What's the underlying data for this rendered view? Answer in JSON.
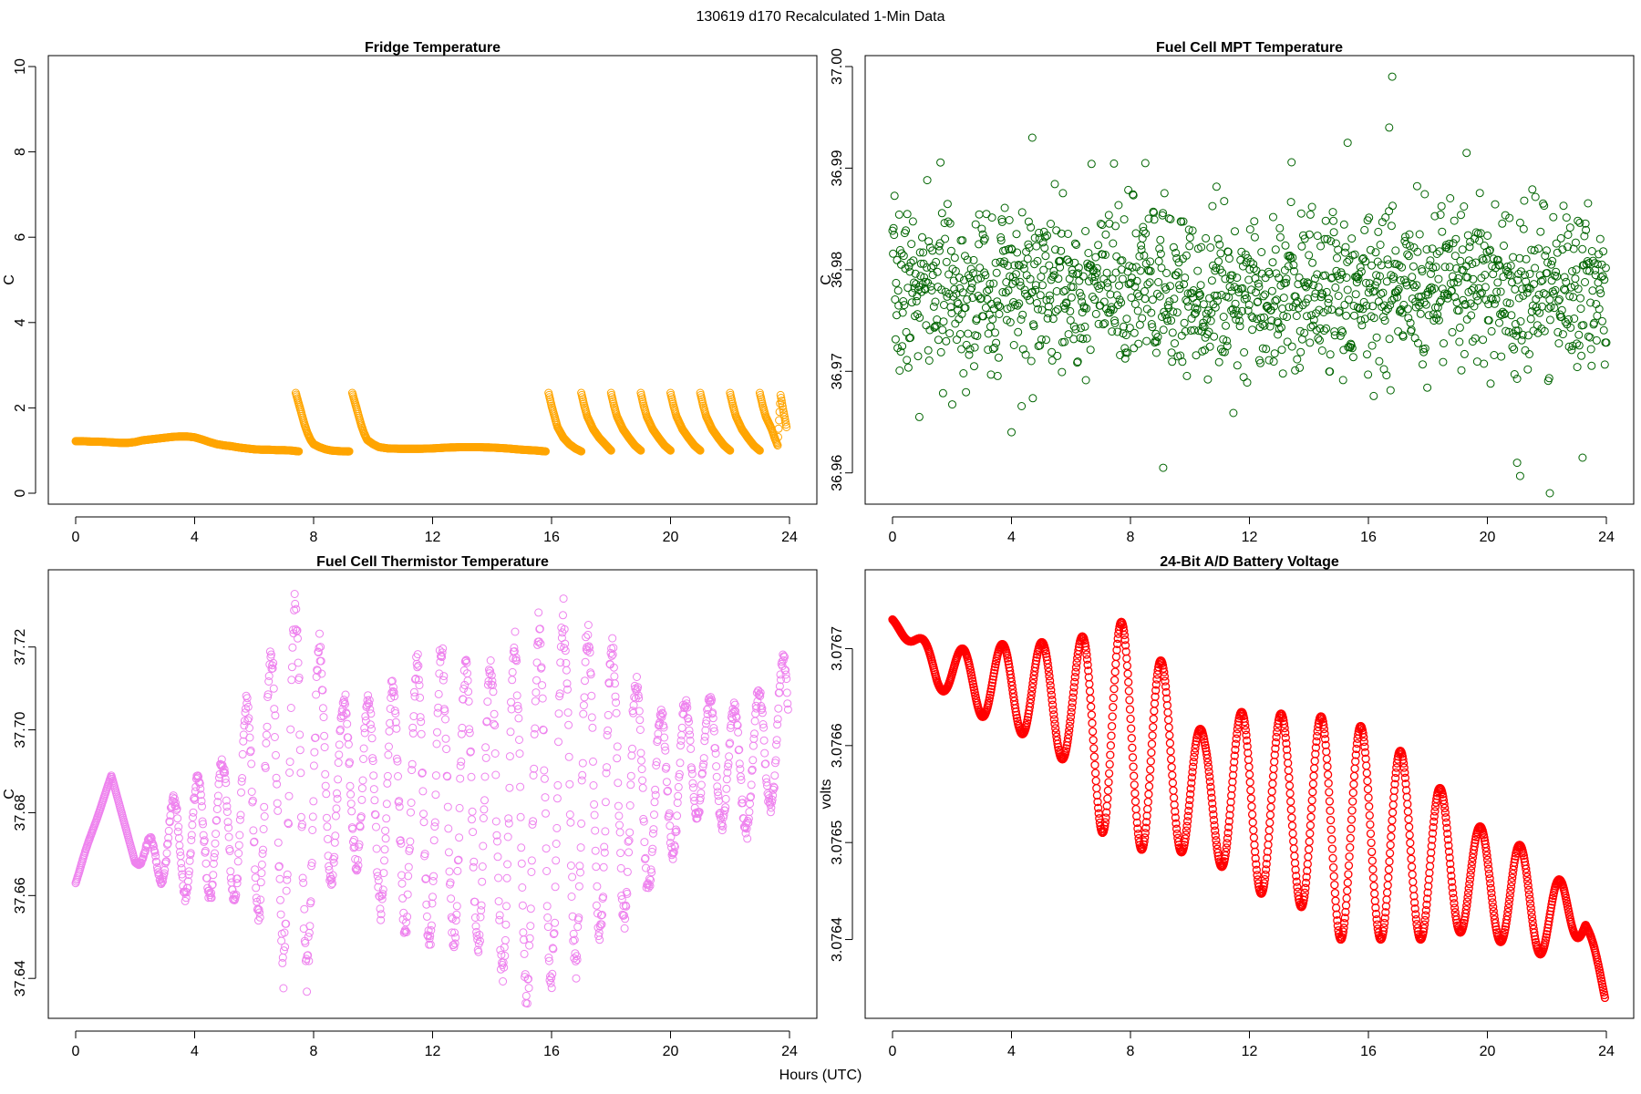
{
  "figure": {
    "title": "130619   d170   Recalculated 1-Min Data",
    "xlabel": "Hours (UTC)"
  },
  "chart_data": [
    {
      "type": "scatter",
      "title": "Fridge Temperature",
      "xlabel": "",
      "ylabel": "C",
      "xlim": [
        0,
        24
      ],
      "ylim": [
        0,
        10
      ],
      "xticks": [
        0,
        4,
        8,
        12,
        16,
        20,
        24
      ],
      "yticks": [
        0,
        2,
        4,
        6,
        8,
        10
      ],
      "ytick_labels": [
        "0",
        "2",
        "4",
        "6",
        "8",
        "10"
      ],
      "color": "#FFA500",
      "marker": "open-circle",
      "series": [
        {
          "x": [
            0.0,
            0.25,
            0.5,
            0.75,
            1.0,
            1.25,
            1.5,
            1.75,
            2.0,
            2.25,
            2.5,
            2.75,
            3.0,
            3.25,
            3.5,
            3.75,
            4.0,
            4.25,
            4.5,
            4.75,
            5.0,
            5.25,
            5.5,
            5.75,
            6.0,
            6.25,
            6.5,
            6.75,
            7.0,
            7.25,
            7.5
          ],
          "y": [
            1.22,
            1.22,
            1.21,
            1.21,
            1.2,
            1.19,
            1.18,
            1.18,
            1.2,
            1.24,
            1.26,
            1.28,
            1.3,
            1.32,
            1.33,
            1.33,
            1.31,
            1.26,
            1.2,
            1.15,
            1.12,
            1.1,
            1.07,
            1.05,
            1.03,
            1.02,
            1.02,
            1.01,
            1.01,
            1.0,
            0.98
          ]
        },
        {
          "x": [
            7.4,
            7.5,
            7.6,
            7.7,
            7.8,
            7.9,
            8.0,
            8.2,
            8.4,
            8.6,
            8.8,
            9.0,
            9.2
          ],
          "y": [
            2.35,
            2.1,
            1.85,
            1.6,
            1.4,
            1.25,
            1.15,
            1.08,
            1.03,
            1.0,
            0.99,
            0.98,
            0.98
          ]
        },
        {
          "x": [
            9.3,
            9.4,
            9.5,
            9.6,
            9.7,
            9.8,
            10.0,
            10.2,
            10.5,
            11.0,
            11.5,
            12.0,
            12.5,
            13.0,
            13.5,
            14.0,
            14.5,
            15.0,
            15.5,
            15.8
          ],
          "y": [
            2.35,
            2.1,
            1.85,
            1.6,
            1.4,
            1.25,
            1.15,
            1.08,
            1.05,
            1.04,
            1.04,
            1.05,
            1.07,
            1.08,
            1.08,
            1.07,
            1.05,
            1.02,
            1.0,
            0.98
          ]
        },
        {
          "x": [
            15.9,
            16.0,
            16.1,
            16.2,
            16.4,
            16.6,
            16.8,
            17.0
          ],
          "y": [
            2.35,
            2.05,
            1.8,
            1.55,
            1.3,
            1.15,
            1.05,
            0.98
          ]
        },
        {
          "x": [
            17.0,
            17.1,
            17.2,
            17.4,
            17.6,
            17.8,
            18.0
          ],
          "y": [
            2.35,
            2.05,
            1.8,
            1.5,
            1.3,
            1.15,
            1.0
          ]
        },
        {
          "x": [
            18.0,
            18.1,
            18.2,
            18.4,
            18.6,
            18.8,
            19.0
          ],
          "y": [
            2.35,
            2.05,
            1.8,
            1.5,
            1.3,
            1.12,
            1.0
          ]
        },
        {
          "x": [
            19.0,
            19.1,
            19.2,
            19.4,
            19.6,
            19.8,
            20.0
          ],
          "y": [
            2.35,
            2.05,
            1.8,
            1.5,
            1.3,
            1.12,
            1.0
          ]
        },
        {
          "x": [
            20.0,
            20.1,
            20.2,
            20.4,
            20.6,
            20.8,
            21.0
          ],
          "y": [
            2.35,
            2.05,
            1.8,
            1.5,
            1.3,
            1.12,
            1.0
          ]
        },
        {
          "x": [
            21.0,
            21.1,
            21.2,
            21.4,
            21.6,
            21.8,
            22.0
          ],
          "y": [
            2.35,
            2.05,
            1.8,
            1.5,
            1.3,
            1.12,
            1.0
          ]
        },
        {
          "x": [
            22.0,
            22.1,
            22.2,
            22.4,
            22.6,
            22.8,
            23.0
          ],
          "y": [
            2.35,
            2.05,
            1.8,
            1.5,
            1.3,
            1.12,
            1.0
          ]
        },
        {
          "x": [
            23.0,
            23.1,
            23.2,
            23.4,
            23.5,
            23.6,
            23.7,
            23.8,
            23.9
          ],
          "y": [
            2.35,
            2.05,
            1.8,
            1.5,
            1.3,
            1.12,
            2.3,
            1.9,
            1.55
          ]
        }
      ]
    },
    {
      "type": "scatter",
      "title": "Fuel Cell MPT Temperature",
      "xlabel": "",
      "ylabel": "C",
      "xlim": [
        0,
        24
      ],
      "ylim": [
        36.958,
        37.0
      ],
      "xticks": [
        0,
        4,
        8,
        12,
        16,
        20,
        24
      ],
      "yticks": [
        36.96,
        36.97,
        36.98,
        36.99,
        37.0
      ],
      "ytick_labels": [
        "36.96",
        "36.97",
        "36.98",
        "36.99",
        "37.00"
      ],
      "color": "#006400",
      "marker": "open-circle",
      "generated": {
        "kind": "noise",
        "n": 1400,
        "center": 36.978,
        "spread": 0.0065,
        "seed": 7,
        "outliers": [
          [
            16.8,
            36.999
          ],
          [
            4.7,
            36.993
          ],
          [
            9.1,
            36.9605
          ],
          [
            21.0,
            36.961
          ],
          [
            21.1,
            36.9597
          ],
          [
            22.1,
            36.958
          ],
          [
            15.3,
            36.9925
          ],
          [
            16.7,
            36.994
          ],
          [
            8.5,
            36.9905
          ],
          [
            19.3,
            36.9915
          ],
          [
            0.9,
            36.9655
          ],
          [
            4.0,
            36.964
          ],
          [
            23.2,
            36.9615
          ]
        ]
      }
    },
    {
      "type": "scatter",
      "title": "Fuel Cell Thermistor Temperature",
      "xlabel": "",
      "ylabel": "C",
      "xlim": [
        0,
        24
      ],
      "ylim": [
        37.633,
        37.736
      ],
      "xticks": [
        0,
        4,
        8,
        12,
        16,
        20,
        24
      ],
      "yticks": [
        37.64,
        37.66,
        37.68,
        37.7,
        37.72
      ],
      "ytick_labels": [
        "37.64",
        "37.66",
        "37.68",
        "37.70",
        "37.72"
      ],
      "color": "#EE82EE",
      "marker": "open-circle",
      "generated": {
        "kind": "oscillation",
        "envelope": [
          [
            0,
            37.663,
            37.664
          ],
          [
            1.2,
            37.689,
            37.689
          ],
          [
            2.0,
            37.668,
            37.668
          ],
          [
            3.5,
            37.686,
            37.66
          ],
          [
            5.0,
            37.693,
            37.66
          ],
          [
            6.5,
            37.718,
            37.655
          ],
          [
            7.5,
            37.731,
            37.636
          ],
          [
            9.0,
            37.706,
            37.672
          ],
          [
            10.5,
            37.709,
            37.655
          ],
          [
            12.0,
            37.72,
            37.648
          ],
          [
            13.5,
            37.714,
            37.648
          ],
          [
            15.0,
            37.722,
            37.635
          ],
          [
            16.5,
            37.727,
            37.642
          ],
          [
            18.0,
            37.72,
            37.652
          ],
          [
            19.5,
            37.704,
            37.664
          ],
          [
            21.0,
            37.708,
            37.68
          ],
          [
            22.5,
            37.705,
            37.675
          ],
          [
            23.9,
            37.718,
            37.685
          ]
        ],
        "period": 0.82,
        "n": 1400
      }
    },
    {
      "type": "scatter",
      "title": "24-Bit A/D Battery Voltage",
      "xlabel": "",
      "ylabel": "volts",
      "xlim": [
        0,
        24
      ],
      "ylim": [
        3.07633,
        3.07677
      ],
      "xticks": [
        0,
        4,
        8,
        12,
        16,
        20,
        24
      ],
      "yticks": [
        3.0764,
        3.0765,
        3.0766,
        3.0767
      ],
      "ytick_labels": [
        "3.0764",
        "3.0765",
        "3.0766",
        "3.0767"
      ],
      "color": "#FF0000",
      "marker": "open-circle",
      "generated": {
        "kind": "oscillation",
        "envelope": [
          [
            0,
            3.07673,
            3.07673
          ],
          [
            1.5,
            3.0767,
            3.07666
          ],
          [
            3.0,
            3.0767,
            3.07663
          ],
          [
            4.5,
            3.07671,
            3.07661
          ],
          [
            6.0,
            3.0767,
            3.07658
          ],
          [
            7.2,
            3.07674,
            3.0765
          ],
          [
            8.8,
            3.0767,
            3.07649
          ],
          [
            10.5,
            3.07661,
            3.07649
          ],
          [
            12.0,
            3.07664,
            3.07645
          ],
          [
            13.5,
            3.07663,
            3.07644
          ],
          [
            15.0,
            3.07663,
            3.0764
          ],
          [
            16.5,
            3.07661,
            3.0764
          ],
          [
            18.0,
            3.07657,
            3.0764
          ],
          [
            19.5,
            3.07652,
            3.07641
          ],
          [
            21.0,
            3.0765,
            3.07639
          ],
          [
            22.5,
            3.07646,
            3.07638
          ],
          [
            23.3,
            3.07644,
            3.07641
          ],
          [
            23.95,
            3.07634,
            3.07634
          ]
        ],
        "period": 1.34,
        "phase": 0.25,
        "n": 1300
      }
    }
  ]
}
